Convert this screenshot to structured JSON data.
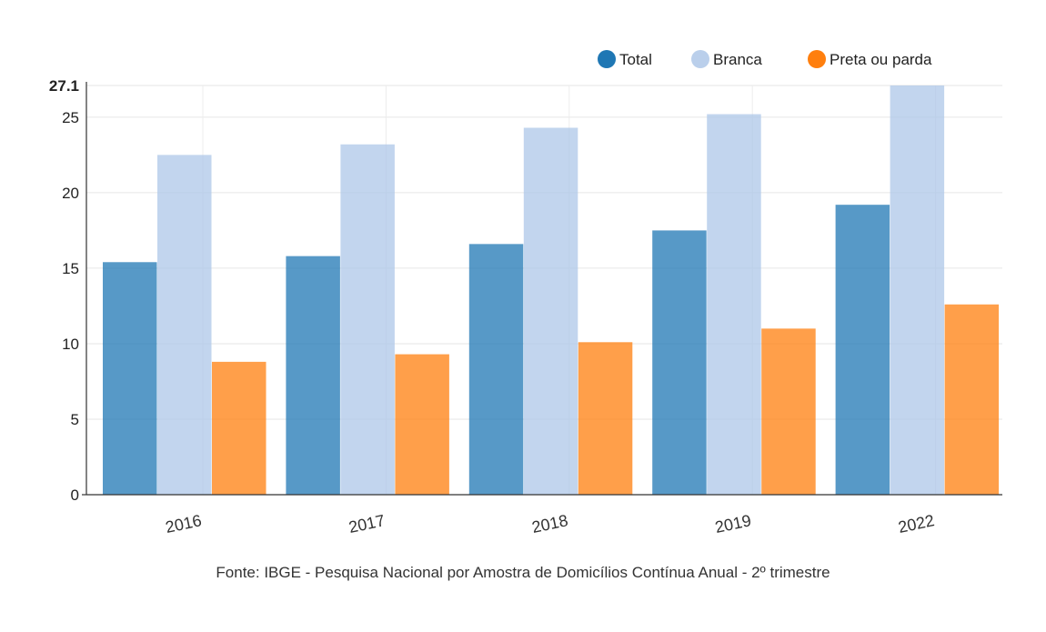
{
  "chart_data": {
    "type": "bar",
    "categories": [
      "2016",
      "2017",
      "2018",
      "2019",
      "2022"
    ],
    "series": [
      {
        "name": "Total",
        "values": [
          15.4,
          15.8,
          16.6,
          17.5,
          19.2
        ],
        "color": "#1f77b4"
      },
      {
        "name": "Branca",
        "values": [
          22.5,
          23.2,
          24.3,
          25.2,
          27.1
        ],
        "color": "#aec7e8"
      },
      {
        "name": "Preta ou parda",
        "values": [
          8.8,
          9.3,
          10.1,
          11.0,
          12.6
        ],
        "color": "#ff7f0e"
      }
    ],
    "ylim": [
      0,
      27.1
    ],
    "yticks": [
      "0",
      "5",
      "10",
      "15",
      "20",
      "25",
      "27.1"
    ],
    "legend_position": "top-right",
    "grid": true,
    "source": "Fonte: IBGE - Pesquisa Nacional por Amostra de Domicílios Contínua Anual - 2º trimestre"
  }
}
